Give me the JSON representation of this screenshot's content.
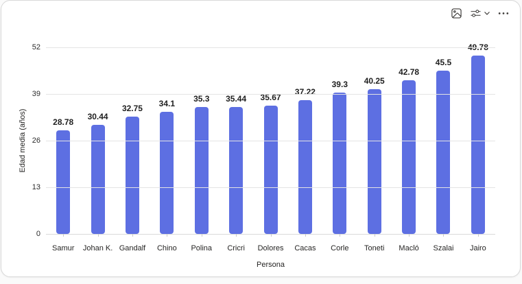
{
  "visual_header": {
    "icons": [
      {
        "name": "image-icon"
      },
      {
        "name": "sliders-icon"
      },
      {
        "name": "chevron-down-icon"
      },
      {
        "name": "ellipsis-icon"
      }
    ]
  },
  "chart_data": {
    "type": "bar",
    "title": "",
    "categories": [
      "Samur",
      "Johan K.",
      "Gandalf",
      "Chino",
      "Polina",
      "Cricri",
      "Dolores",
      "Cacas",
      "Corle",
      "Toneti",
      "Macló",
      "Szalai",
      "Jairo"
    ],
    "values": [
      28.78,
      30.44,
      32.75,
      34.1,
      35.3,
      35.44,
      35.67,
      37.22,
      39.3,
      40.25,
      42.78,
      45.5,
      49.78
    ],
    "xlabel": "Persona",
    "ylabel": "Edad media (años)",
    "ylim": [
      0,
      52
    ],
    "yticks": [
      0,
      13,
      26,
      39,
      52
    ],
    "grid": true,
    "legend": false,
    "data_labels": true,
    "colors": {
      "bar": "#5D6FE2",
      "gridline": "#E4E4E4",
      "axis_line": "#D9D9D9",
      "data_label": "#1F1F1F",
      "tick_label": "#2B2B2B"
    }
  }
}
